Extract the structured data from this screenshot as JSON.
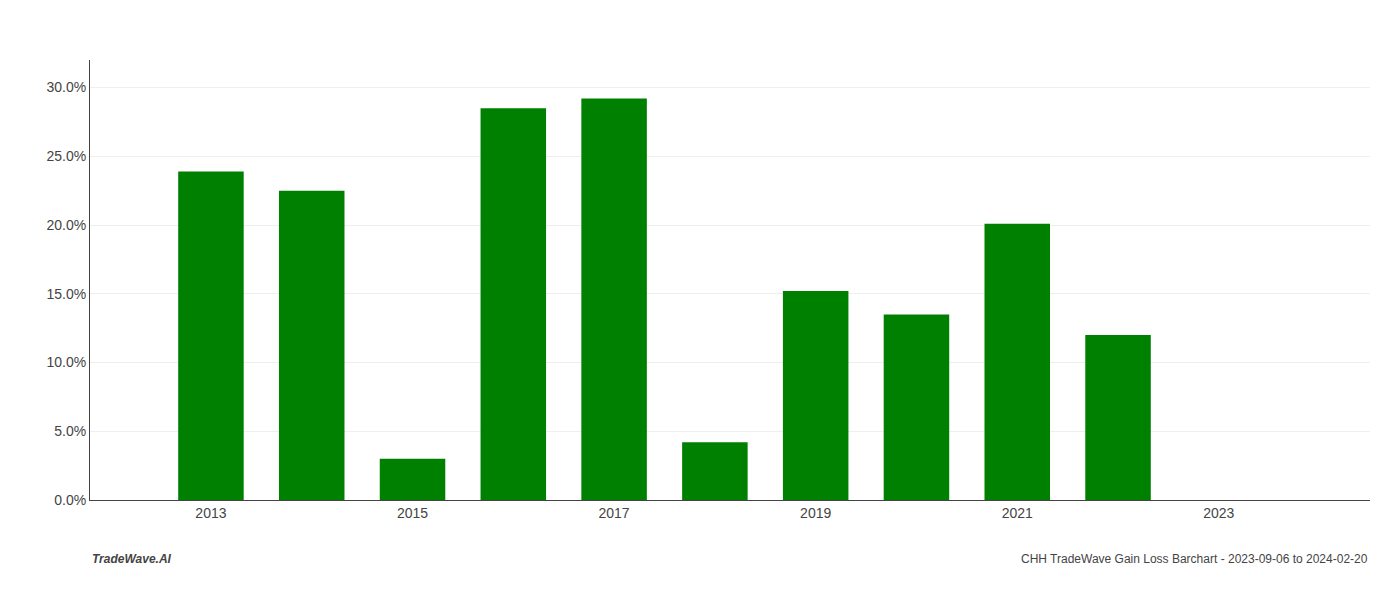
{
  "chart_data": {
    "type": "bar",
    "x": [
      2013,
      2014,
      2015,
      2016,
      2017,
      2018,
      2019,
      2020,
      2021,
      2022
    ],
    "values": [
      0.239,
      0.225,
      0.03,
      0.285,
      0.292,
      0.042,
      0.152,
      0.135,
      0.201,
      0.12
    ],
    "color": "#008000",
    "xlim": [
      2011.8,
      2024.5
    ],
    "xticks": [
      2013,
      2015,
      2017,
      2019,
      2021,
      2023
    ],
    "ylim": [
      0.0,
      0.32
    ],
    "yticks": [
      {
        "value": 0.0,
        "label": "0.0%"
      },
      {
        "value": 0.05,
        "label": "5.0%"
      },
      {
        "value": 0.1,
        "label": "10.0%"
      },
      {
        "value": 0.15,
        "label": "15.0%"
      },
      {
        "value": 0.2,
        "label": "20.0%"
      },
      {
        "value": 0.25,
        "label": "25.0%"
      },
      {
        "value": 0.3,
        "label": "30.0%"
      }
    ],
    "grid": true,
    "annotations": [
      "TradeWave.AI",
      "CHH TradeWave Gain Loss Barchart - 2023-09-06 to 2024-02-20"
    ]
  }
}
